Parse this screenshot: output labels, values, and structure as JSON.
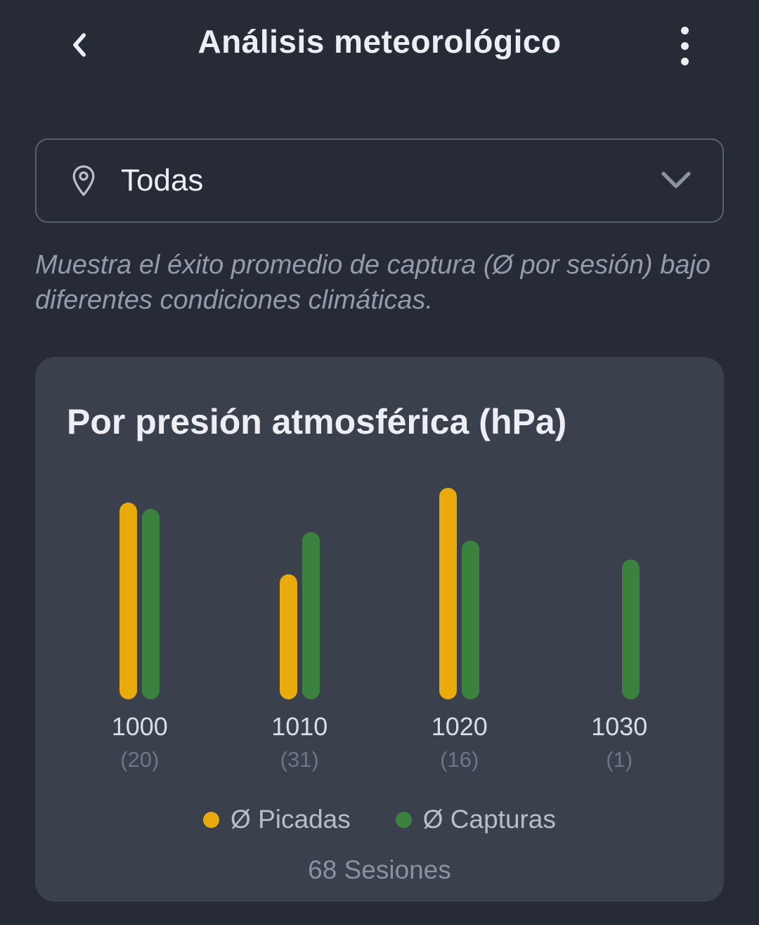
{
  "header": {
    "title": "Análisis meteorológico",
    "back_icon": "chevron-left",
    "menu_icon": "kebab-menu"
  },
  "filter": {
    "icon": "location-pin",
    "value": "Todas",
    "chevron_icon": "chevron-down"
  },
  "description": "Muestra el éxito promedio de captura (Ø por sesión) bajo diferentes condiciones climáticas.",
  "card": {
    "title": "Por presión atmosférica (hPa)",
    "footer": "68 Sesiones"
  },
  "chart_data": {
    "type": "bar",
    "title": "Por presión atmosférica (hPa)",
    "categories": [
      "1000",
      "1010",
      "1020",
      "1030"
    ],
    "category_counts": [
      "(20)",
      "(31)",
      "(16)",
      "(1)"
    ],
    "session_counts": [
      20,
      31,
      16,
      1
    ],
    "series": [
      {
        "name": "Ø Picadas",
        "color": "#E9AA0B",
        "values": [
          0.93,
          0.59,
          1.0,
          0.0
        ]
      },
      {
        "name": "Ø Capturas",
        "color": "#3B823E",
        "values": [
          0.9,
          0.79,
          0.75,
          0.66
        ]
      }
    ],
    "y_axis": "unlabeled — values are relative bar heights (1.00 = tallest bar)",
    "xlabel": "",
    "ylabel": "",
    "grid": false,
    "legend_position": "bottom",
    "total_label": "68 Sesiones"
  },
  "colors": {
    "page_bg": "#262B36",
    "card_bg": "#3A404C",
    "text_primary": "#ECEEF4",
    "text_muted": "#949CAC",
    "text_faint": "#6E7585",
    "border": "#596070",
    "picadas": "#E9AA0B",
    "capturas": "#3B823E"
  }
}
